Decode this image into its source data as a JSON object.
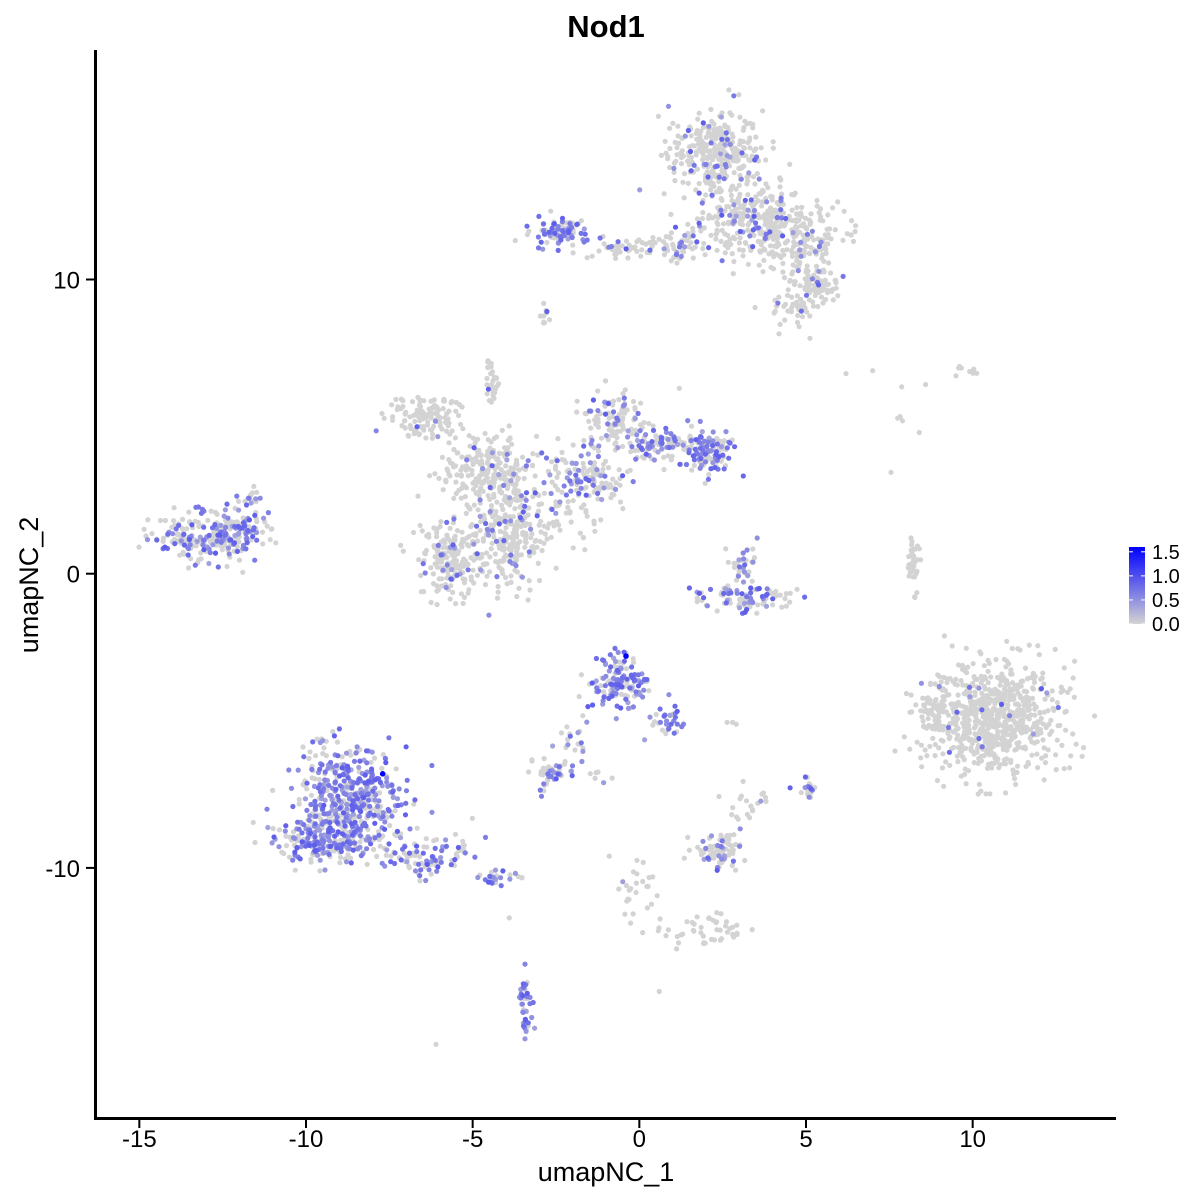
{
  "chart_data": {
    "type": "scatter",
    "title": "Nod1",
    "xlabel": "umapNC_1",
    "ylabel": "umapNC_2",
    "xlim": [
      -16.3,
      14.3
    ],
    "ylim": [
      -18.5,
      17.8
    ],
    "x_ticks": [
      -15,
      -10,
      -5,
      0,
      5,
      10
    ],
    "x_tick_labels": [
      "-15",
      "-10",
      "-5",
      "0",
      "5",
      "10"
    ],
    "y_ticks": [
      -10,
      0,
      10
    ],
    "y_tick_labels": [
      "-10",
      "0",
      "10"
    ],
    "grid": false,
    "legend_position": "right",
    "colorbar": {
      "min": 0,
      "max": 1.6,
      "ticks": [
        0.0,
        0.5,
        1.0,
        1.5
      ],
      "tick_labels": [
        "0.0",
        "0.5",
        "1.0",
        "1.5"
      ],
      "low_color": "#d3d3d3",
      "high_color": "#0000ff"
    },
    "clusters": [
      {
        "cx": 2.3,
        "cy": 14.2,
        "sx": 0.9,
        "sy": 1.0,
        "n": 320,
        "frac": 0.12
      },
      {
        "cx": 3.3,
        "cy": 12.0,
        "sx": 1.1,
        "sy": 0.8,
        "n": 220,
        "frac": 0.1
      },
      {
        "cx": 4.7,
        "cy": 11.4,
        "sx": 1.0,
        "sy": 0.8,
        "n": 200,
        "frac": 0.08
      },
      {
        "cx": 5.3,
        "cy": 9.8,
        "sx": 0.5,
        "sy": 0.4,
        "n": 80,
        "frac": 0.05
      },
      {
        "cx": 4.6,
        "cy": 9.0,
        "sx": 0.4,
        "sy": 0.4,
        "n": 40,
        "frac": 0.05
      },
      {
        "cx": -2.4,
        "cy": 11.6,
        "sx": 0.6,
        "sy": 0.35,
        "n": 90,
        "frac": 0.6
      },
      {
        "cx": -0.3,
        "cy": 11.1,
        "sx": 0.9,
        "sy": 0.2,
        "n": 40,
        "frac": 0.1
      },
      {
        "cx": 1.1,
        "cy": 11.2,
        "sx": 0.7,
        "sy": 0.4,
        "n": 60,
        "frac": 0.15
      },
      {
        "cx": -2.8,
        "cy": 8.8,
        "sx": 0.1,
        "sy": 0.3,
        "n": 10,
        "frac": 0.2
      },
      {
        "cx": -6.5,
        "cy": 5.3,
        "sx": 0.7,
        "sy": 0.5,
        "n": 120,
        "frac": 0.03
      },
      {
        "cx": -4.7,
        "cy": 3.6,
        "sx": 0.8,
        "sy": 0.9,
        "n": 200,
        "frac": 0.05
      },
      {
        "cx": -3.8,
        "cy": 1.6,
        "sx": 0.6,
        "sy": 1.5,
        "n": 260,
        "frac": 0.1
      },
      {
        "cx": -5.6,
        "cy": 0.5,
        "sx": 0.7,
        "sy": 0.8,
        "n": 200,
        "frac": 0.12
      },
      {
        "cx": -4.4,
        "cy": 6.5,
        "sx": 0.15,
        "sy": 0.6,
        "n": 30,
        "frac": 0.05
      },
      {
        "cx": -1.7,
        "cy": 3.3,
        "sx": 0.9,
        "sy": 0.7,
        "n": 140,
        "frac": 0.3
      },
      {
        "cx": -0.8,
        "cy": 5.2,
        "sx": 0.6,
        "sy": 0.7,
        "n": 100,
        "frac": 0.3
      },
      {
        "cx": 0.7,
        "cy": 4.4,
        "sx": 0.8,
        "sy": 0.4,
        "n": 110,
        "frac": 0.4
      },
      {
        "cx": 2.1,
        "cy": 4.1,
        "sx": 0.5,
        "sy": 0.5,
        "n": 110,
        "frac": 0.45
      },
      {
        "cx": -2.5,
        "cy": 1.6,
        "sx": 0.6,
        "sy": 0.5,
        "n": 40,
        "frac": 0.0
      },
      {
        "cx": -13.0,
        "cy": 1.2,
        "sx": 1.0,
        "sy": 0.55,
        "n": 200,
        "frac": 0.4
      },
      {
        "cx": -12.0,
        "cy": 1.6,
        "sx": 0.5,
        "sy": 0.5,
        "n": 60,
        "frac": 0.55
      },
      {
        "cx": -11.8,
        "cy": 2.5,
        "sx": 0.3,
        "sy": 0.2,
        "n": 15,
        "frac": 0.5
      },
      {
        "cx": 3.1,
        "cy": 0.3,
        "sx": 0.3,
        "sy": 0.5,
        "n": 30,
        "frac": 0.35
      },
      {
        "cx": 3.1,
        "cy": -0.8,
        "sx": 1.0,
        "sy": 0.3,
        "n": 90,
        "frac": 0.45
      },
      {
        "cx": 8.2,
        "cy": 0.4,
        "sx": 0.15,
        "sy": 0.7,
        "n": 35,
        "frac": 0.0
      },
      {
        "cx": 10.6,
        "cy": -4.9,
        "sx": 1.3,
        "sy": 1.3,
        "n": 750,
        "frac": 0.02
      },
      {
        "cx": 8.7,
        "cy": -4.7,
        "sx": 0.3,
        "sy": 0.5,
        "n": 40,
        "frac": 0.02
      },
      {
        "cx": -0.6,
        "cy": -3.7,
        "sx": 0.6,
        "sy": 0.55,
        "n": 140,
        "frac": 0.65
      },
      {
        "cx": 0.8,
        "cy": -5.0,
        "sx": 0.4,
        "sy": 0.5,
        "n": 30,
        "frac": 0.7
      },
      {
        "cx": -2.0,
        "cy": -5.6,
        "sx": 0.4,
        "sy": 0.6,
        "n": 20,
        "frac": 0.55
      },
      {
        "cx": -2.6,
        "cy": -6.8,
        "sx": 0.4,
        "sy": 0.3,
        "n": 45,
        "frac": 0.55
      },
      {
        "cx": -8.7,
        "cy": -7.6,
        "sx": 1.0,
        "sy": 1.2,
        "n": 450,
        "frac": 0.62
      },
      {
        "cx": -9.4,
        "cy": -9.2,
        "sx": 1.0,
        "sy": 0.5,
        "n": 200,
        "frac": 0.62
      },
      {
        "cx": -6.3,
        "cy": -9.6,
        "sx": 0.9,
        "sy": 0.4,
        "n": 90,
        "frac": 0.45
      },
      {
        "cx": -4.3,
        "cy": -10.3,
        "sx": 0.4,
        "sy": 0.2,
        "n": 25,
        "frac": 0.5
      },
      {
        "cx": 2.3,
        "cy": -9.4,
        "sx": 0.5,
        "sy": 0.4,
        "n": 80,
        "frac": 0.25
      },
      {
        "cx": 3.3,
        "cy": -7.8,
        "sx": 0.5,
        "sy": 0.4,
        "n": 20,
        "frac": 0.05
      },
      {
        "cx": 0.0,
        "cy": -10.9,
        "sx": 0.4,
        "sy": 0.6,
        "n": 25,
        "frac": 0.1
      },
      {
        "cx": 1.9,
        "cy": -12.1,
        "sx": 0.8,
        "sy": 0.35,
        "n": 45,
        "frac": 0.02
      },
      {
        "cx": -3.4,
        "cy": -14.6,
        "sx": 0.15,
        "sy": 0.8,
        "n": 40,
        "frac": 0.7
      },
      {
        "cx": 5.1,
        "cy": -7.2,
        "sx": 0.1,
        "sy": 0.25,
        "n": 15,
        "frac": 0.3
      },
      {
        "cx": 9.8,
        "cy": 6.9,
        "sx": 0.3,
        "sy": 0.1,
        "n": 8,
        "frac": 0.0
      },
      {
        "cx": 8.0,
        "cy": 4.8,
        "sx": 0.6,
        "sy": 1.5,
        "n": 6,
        "frac": 0.0
      },
      {
        "cx": -1.1,
        "cy": -6.8,
        "sx": 0.4,
        "sy": 0.3,
        "n": 6,
        "frac": 0.3
      },
      {
        "cx": 2.8,
        "cy": -5.1,
        "sx": 0.1,
        "sy": 0.1,
        "n": 3,
        "frac": 0.4
      },
      {
        "cx": 5.0,
        "cy": -7.3,
        "sx": 0.3,
        "sy": 0.3,
        "n": 6,
        "frac": 0.2
      }
    ],
    "highlighted_points": [
      {
        "x": -0.4,
        "y": -2.8,
        "value": 1.6
      },
      {
        "x": -7.7,
        "y": -6.8,
        "value": 1.6
      }
    ],
    "isolated_points": [
      {
        "x": 7.0,
        "y": 6.9
      },
      {
        "x": 8.4,
        "y": 4.8
      },
      {
        "x": 6.2,
        "y": 6.8
      },
      {
        "x": 1.2,
        "y": 6.3
      },
      {
        "x": -6.1,
        "y": -16.0
      },
      {
        "x": 0.6,
        "y": -14.2
      },
      {
        "x": -3.9,
        "y": -11.7
      },
      {
        "x": 0.1,
        "y": -12.2
      },
      {
        "x": -0.9,
        "y": -9.6
      },
      {
        "x": 0.8,
        "y": -12.3
      }
    ]
  }
}
